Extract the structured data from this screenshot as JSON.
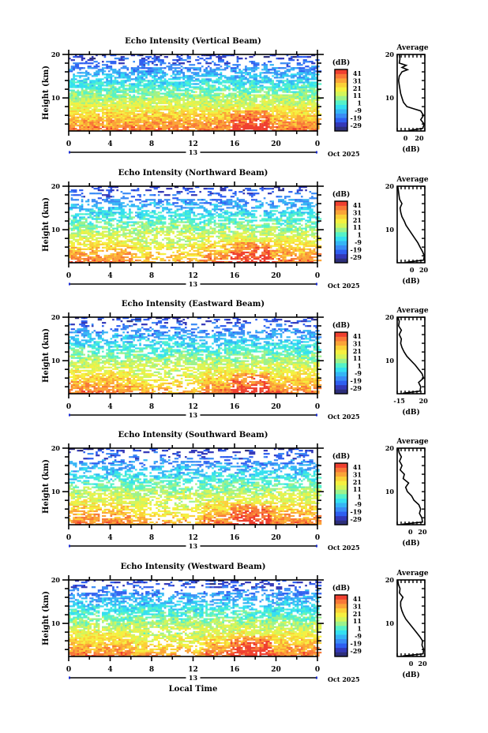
{
  "chart_data": {
    "type": "heatmap",
    "xlabel": "Local Time",
    "date_label": "Oct 2025",
    "day_label": "13",
    "x_ticks": [
      "0",
      "4",
      "8",
      "12",
      "16",
      "20",
      "0"
    ],
    "xlim": [
      0,
      24
    ],
    "ylabel": "Height (km)",
    "y_ticks": [
      "20",
      "10"
    ],
    "ylim": [
      2.4,
      20
    ],
    "colorbar": {
      "unit": "(dB)",
      "ticks": [
        "41",
        "31",
        "21",
        "11",
        "1",
        "-9",
        "-19",
        "-29"
      ],
      "range": [
        -34,
        46
      ],
      "colors": [
        "#2d2f7a",
        "#3338b8",
        "#2f5ff0",
        "#3a8cf5",
        "#35b5f5",
        "#34e0f0",
        "#55f2c8",
        "#9cf28c",
        "#d4f55a",
        "#f5f040",
        "#fbd038",
        "#fba438",
        "#f87838",
        "#ef4030"
      ]
    },
    "panels": [
      {
        "title": "Echo Intensity (Vertical Beam)",
        "avg_title": "Average",
        "avg_xlabel": "(dB)",
        "avg_xticks": [
          "0",
          "20"
        ],
        "avg_xlim": [
          -12,
          28
        ],
        "avg_profile": {
          "height": [
            2.5,
            3,
            4,
            5,
            6,
            7,
            7.5,
            8,
            9,
            10,
            11,
            12,
            13,
            14,
            15,
            16,
            16.5,
            17,
            17.5,
            18,
            19,
            20
          ],
          "db": [
            5,
            25,
            27,
            22,
            26,
            22,
            12,
            2,
            -3,
            -5,
            -7,
            -8,
            -9,
            -10,
            -9,
            -5,
            3,
            -5,
            1,
            -9,
            -8,
            -9
          ]
        },
        "activity": 1.0
      },
      {
        "title": "Echo Intensity (Northward Beam)",
        "avg_title": "Average",
        "avg_xlabel": "(dB)",
        "avg_xticks": [
          "0",
          "20"
        ],
        "avg_xlim": [
          -25,
          22
        ],
        "avg_profile": {
          "height": [
            2.5,
            3,
            4,
            5,
            6,
            7,
            8,
            9,
            10,
            11,
            12,
            13,
            14,
            15,
            16,
            17,
            18,
            19,
            20
          ],
          "db": [
            -10,
            20,
            21,
            18,
            14,
            10,
            5,
            0,
            -5,
            -10,
            -13,
            -17,
            -19,
            -20,
            -17,
            -21,
            -22,
            -23,
            -24
          ],
          "_": null
        },
        "activity": 0.7
      },
      {
        "title": "Echo Intensity (Eastward Beam)",
        "avg_title": "Average",
        "avg_xlabel": "(dB)",
        "avg_xticks": [
          "-15",
          "20"
        ],
        "avg_xlim": [
          -18,
          22
        ],
        "avg_profile": {
          "height": [
            2.5,
            3,
            4,
            5,
            6,
            7,
            8,
            9,
            10,
            11,
            12,
            13,
            14,
            15,
            16,
            17,
            18,
            19,
            20
          ],
          "db": [
            -10,
            15,
            16,
            13,
            20,
            18,
            13,
            8,
            2,
            -4,
            -8,
            -11,
            -13,
            -12,
            -15,
            -12,
            -16,
            -15,
            -17
          ]
        },
        "activity": 0.75
      },
      {
        "title": "Echo Intensity (Southward Beam)",
        "avg_title": "Average",
        "avg_xlabel": "(dB)",
        "avg_xticks": [
          "0",
          "20"
        ],
        "avg_xlim": [
          -22,
          24
        ],
        "avg_profile": {
          "height": [
            2.5,
            3,
            4,
            5,
            6,
            7,
            8,
            9,
            10,
            11,
            12,
            13,
            14,
            15,
            16,
            17,
            18,
            19,
            20
          ],
          "db": [
            -14,
            20,
            19,
            15,
            17,
            14,
            6,
            2,
            -5,
            -8,
            -3,
            -12,
            -10,
            -17,
            -14,
            -18,
            -15,
            -19,
            -20
          ]
        },
        "activity": 0.65
      },
      {
        "title": "Echo Intensity (Westward Beam)",
        "avg_title": "Average",
        "avg_xlabel": "(dB)",
        "avg_xticks": [
          "0",
          "20"
        ],
        "avg_xlim": [
          -24,
          24
        ],
        "avg_profile": {
          "height": [
            2.5,
            3,
            4,
            5,
            6,
            7,
            8,
            9,
            10,
            11,
            12,
            13,
            14,
            15,
            16,
            17,
            18,
            19,
            20
          ],
          "db": [
            -15,
            21,
            22,
            19,
            20,
            15,
            9,
            3,
            -3,
            -9,
            -13,
            -16,
            -18,
            -18,
            -14,
            -20,
            -19,
            -22,
            -23
          ]
        },
        "activity": 0.85
      }
    ]
  }
}
